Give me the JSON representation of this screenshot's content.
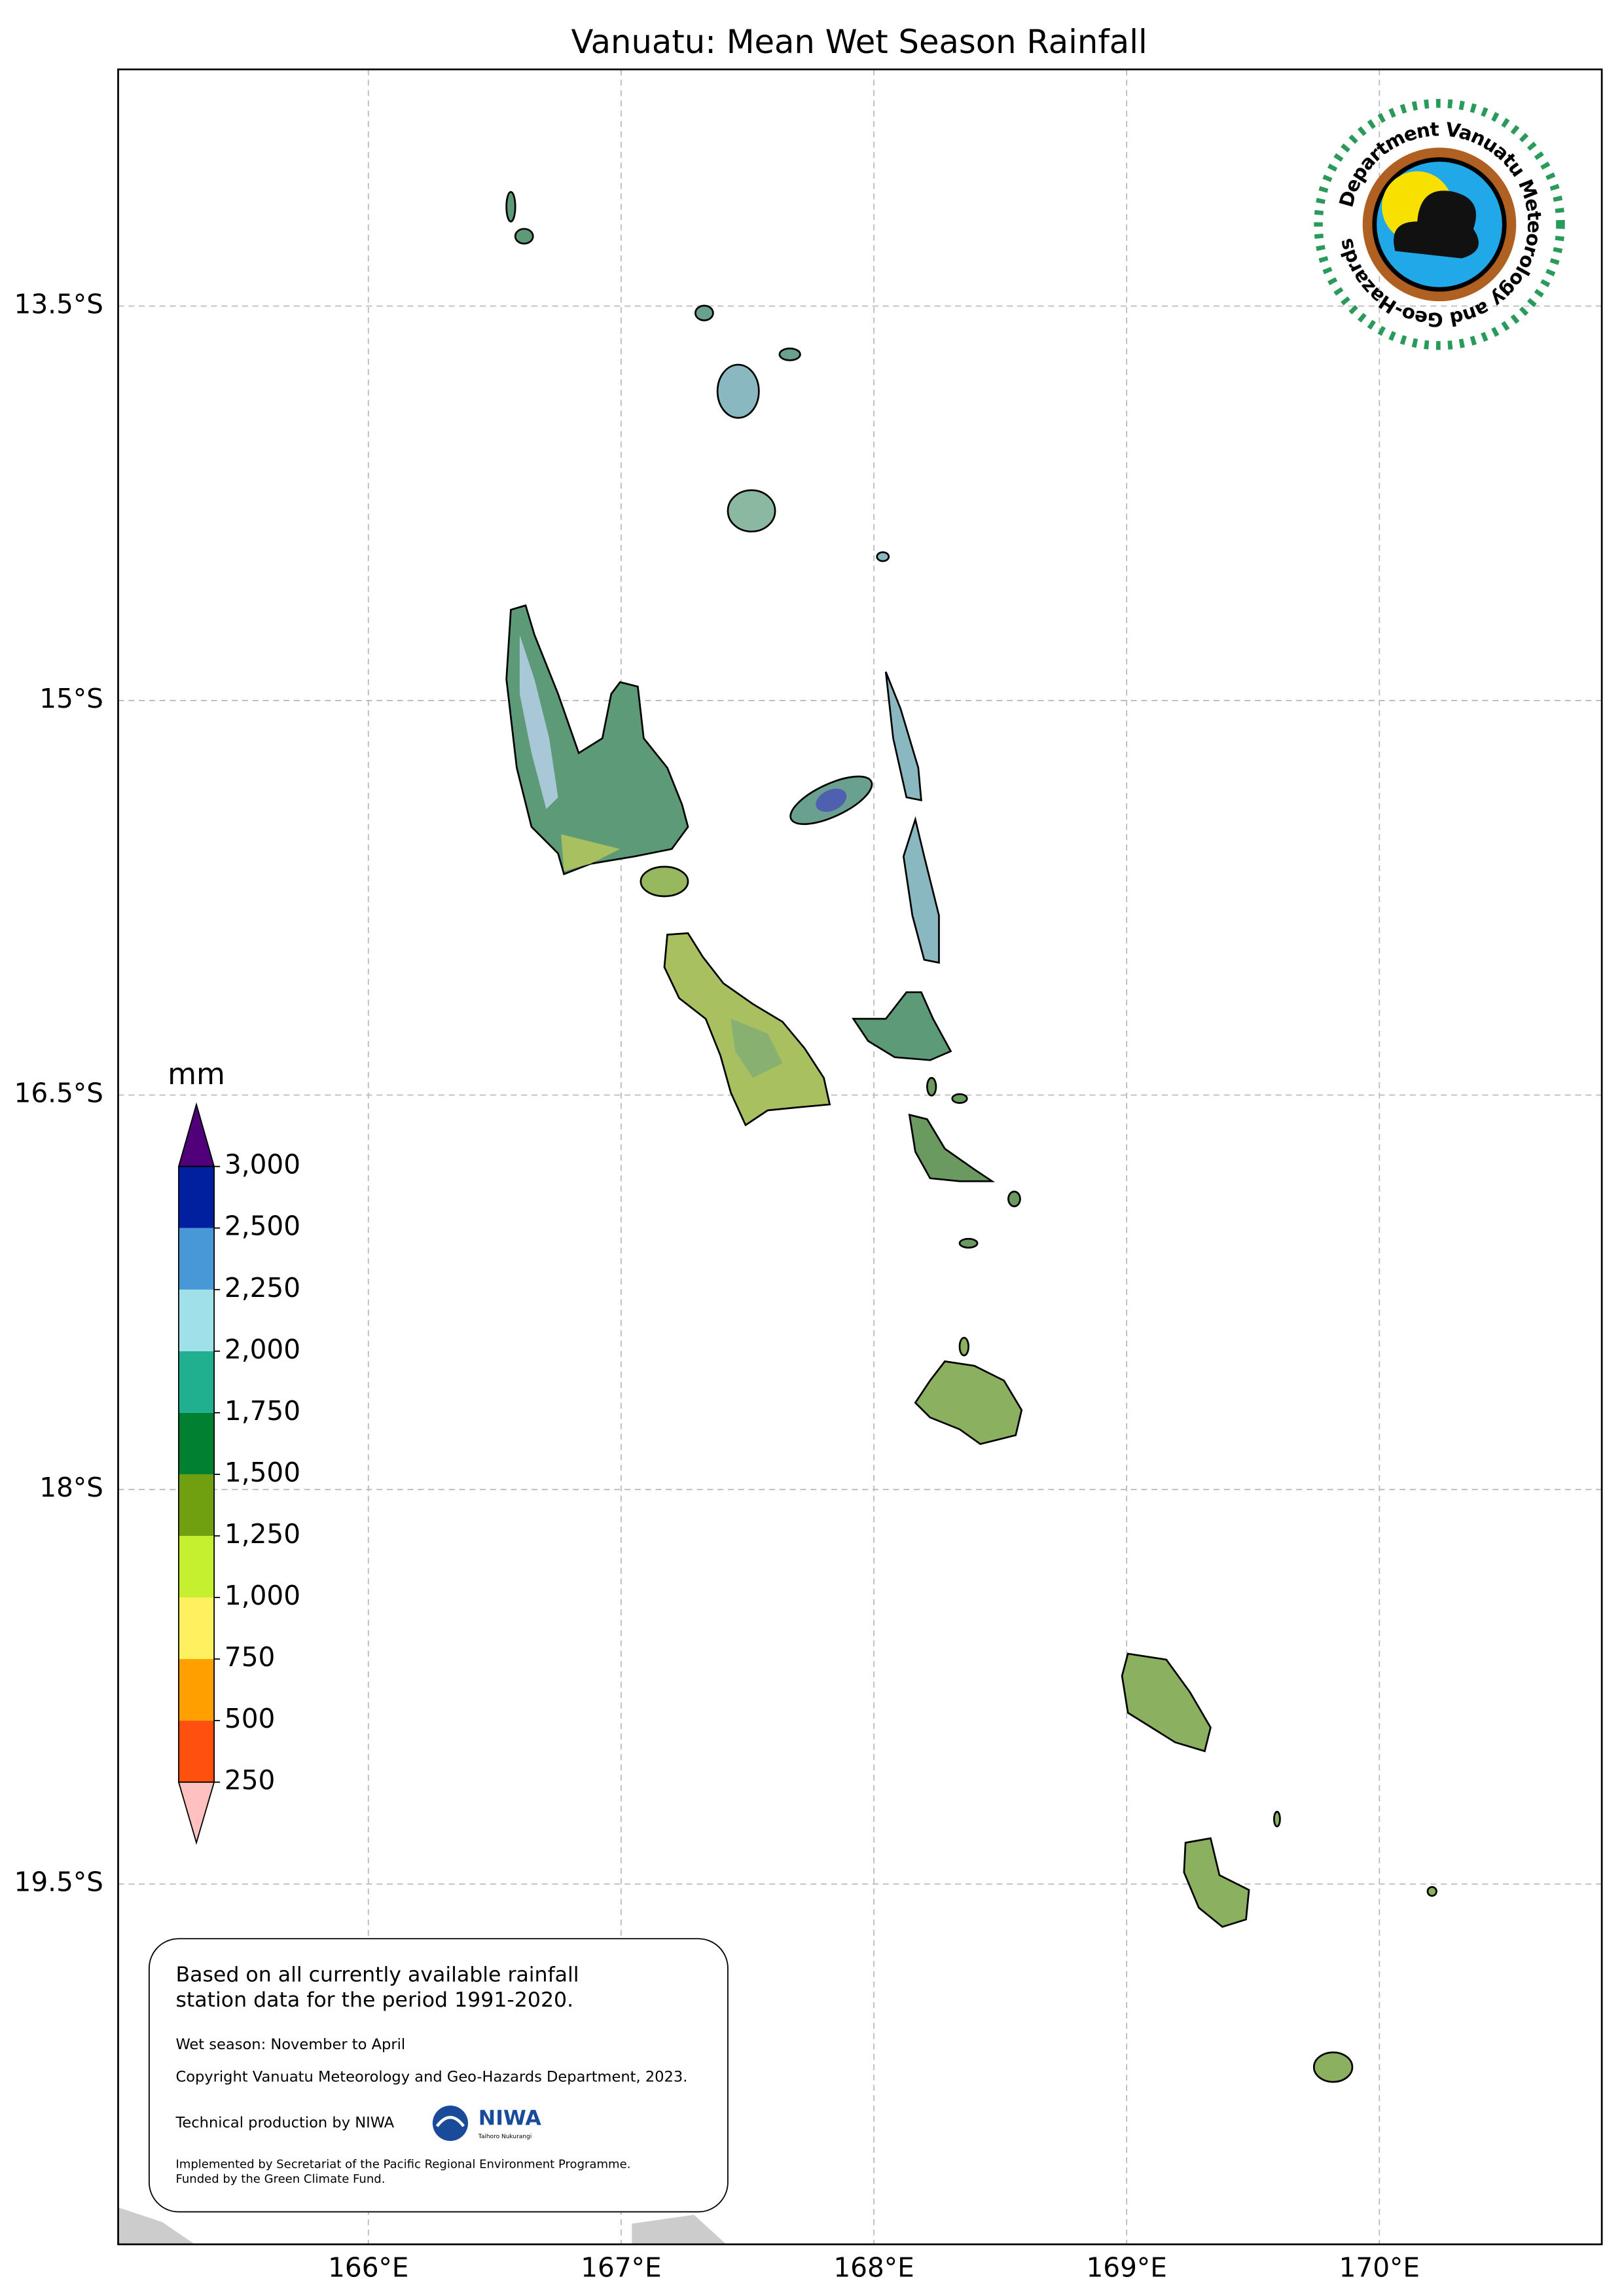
{
  "title": "Vanuatu: Mean Wet Season Rainfall",
  "map": {
    "xlim": [
      165.01,
      170.88
    ],
    "ylim": [
      -20.87,
      -12.6
    ],
    "xticks": [
      {
        "value": 166,
        "label": "166°E"
      },
      {
        "value": 167,
        "label": "167°E"
      },
      {
        "value": 168,
        "label": "168°E"
      },
      {
        "value": 169,
        "label": "169°E"
      },
      {
        "value": 170,
        "label": "170°E"
      }
    ],
    "yticks": [
      {
        "value": -13.5,
        "label": "13.5°S"
      },
      {
        "value": -15,
        "label": "15°S"
      },
      {
        "value": -16.5,
        "label": "16.5°S"
      },
      {
        "value": -18,
        "label": "18°S"
      },
      {
        "value": -19.5,
        "label": "19.5°S"
      }
    ],
    "grid": true
  },
  "colorbar": {
    "unit": "mm",
    "levels": [
      250,
      500,
      750,
      {
        "value": 1000,
        "label": "1,000"
      },
      {
        "value": 1250,
        "label": "1,250"
      },
      {
        "value": 1500,
        "label": "1,500"
      },
      {
        "value": 1750,
        "label": "1,750"
      },
      {
        "value": 2000,
        "label": "2,000"
      },
      {
        "value": 2250,
        "label": "2,250"
      },
      {
        "value": 2500,
        "label": "2,500"
      },
      {
        "value": 3000,
        "label": "3,000"
      }
    ],
    "colors": [
      "#ff5010",
      "#ffa000",
      "#fff060",
      "#c4f030",
      "#70a010",
      "#008030",
      "#20b090",
      "#a0e0e8",
      "#4898d8",
      "#0020a0"
    ],
    "under_color": "#ffc0c0",
    "over_color": "#500078"
  },
  "logo_text": "Department Vanuatu Meteorology and Geo-Hazards",
  "note": {
    "lines": [
      "Based on all currently available rainfall",
      "station data for the period 1991-2020."
    ],
    "season": "Wet season: November to April",
    "copyright": "Copyright Vanuatu Meteorology and Geo-Hazards Department, 2023.",
    "production": "Technical production by NIWA",
    "niwa": "NIWA",
    "niwa_sub": "Taihoro Nukurangi",
    "funding": [
      "Implemented by Secretariat of the Pacific Regional Environment Programme.",
      "Funded by the Green Climate Fund."
    ]
  }
}
